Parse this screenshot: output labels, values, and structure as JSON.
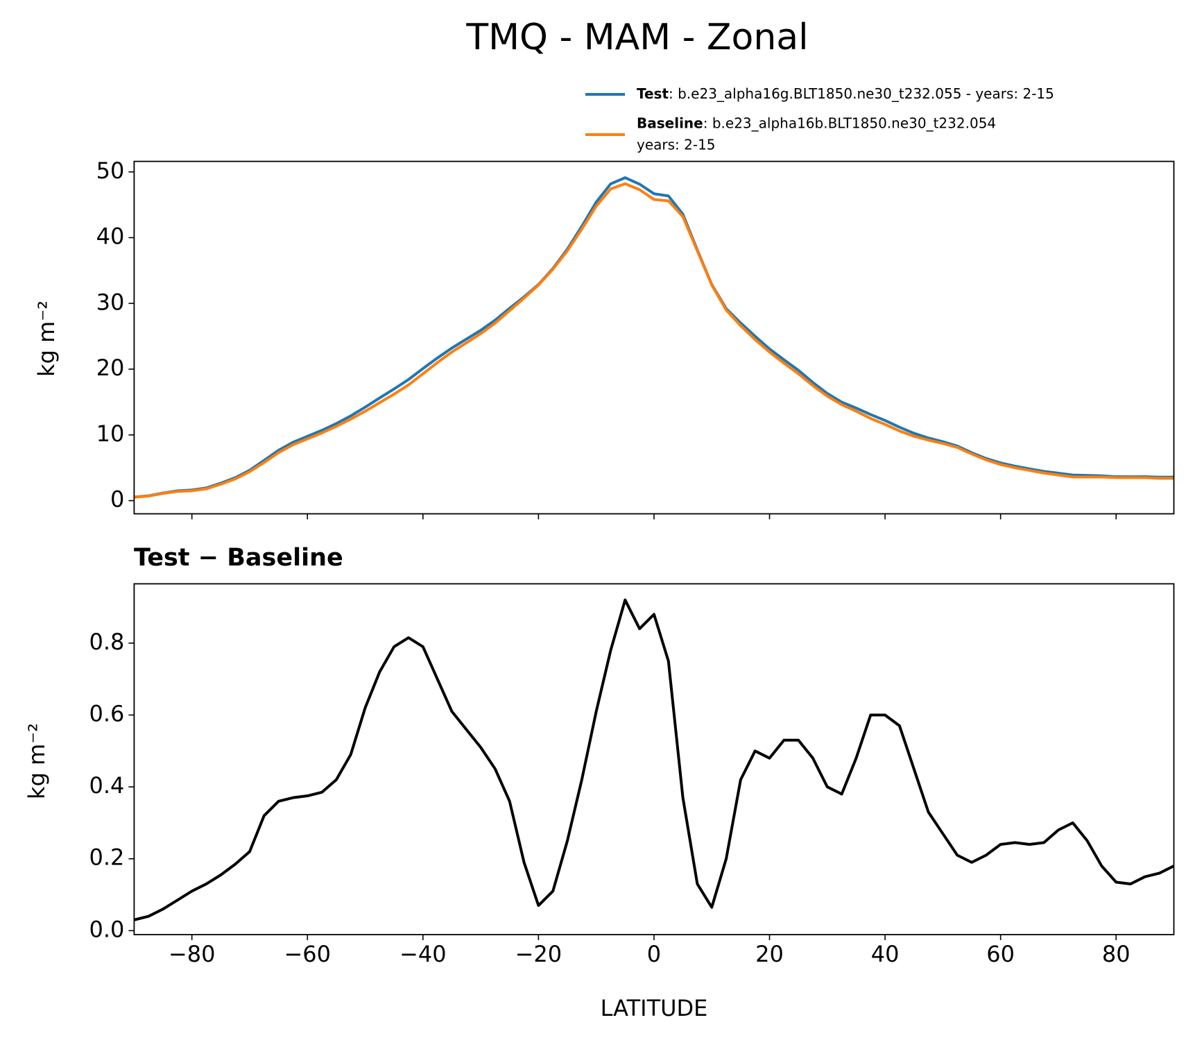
{
  "chart_data": [
    {
      "type": "line",
      "title": "TMQ - MAM - Zonal",
      "ylabel": "kg m⁻²",
      "x": [
        -90,
        -87.5,
        -85,
        -82.5,
        -80,
        -77.5,
        -75,
        -72.5,
        -70,
        -67.5,
        -65,
        -62.5,
        -60,
        -57.5,
        -55,
        -52.5,
        -50,
        -47.5,
        -45,
        -42.5,
        -40,
        -37.5,
        -35,
        -32.5,
        -30,
        -27.5,
        -25,
        -22.5,
        -20,
        -17.5,
        -15,
        -12.5,
        -10,
        -7.5,
        -5,
        -2.5,
        0,
        2.5,
        5,
        7.5,
        10,
        12.5,
        15,
        17.5,
        20,
        22.5,
        25,
        27.5,
        30,
        32.5,
        35,
        37.5,
        40,
        42.5,
        45,
        47.5,
        50,
        52.5,
        55,
        57.5,
        60,
        62.5,
        65,
        67.5,
        70,
        72.5,
        75,
        77.5,
        80,
        82.5,
        85,
        87.5,
        90
      ],
      "series": [
        {
          "name": "Test",
          "description_lines": [
            ": b.e23_alpha16g.BLT1850.ne30_t232.055 - years: 2-15"
          ],
          "color": "#1f77b4",
          "values": [
            0.53,
            0.74,
            1.16,
            1.49,
            1.61,
            1.93,
            2.66,
            3.49,
            4.62,
            6.12,
            7.66,
            8.87,
            9.78,
            10.69,
            11.72,
            12.89,
            14.22,
            15.62,
            16.99,
            18.42,
            20.09,
            21.7,
            23.21,
            24.56,
            25.91,
            27.45,
            29.26,
            30.99,
            32.87,
            35.31,
            38.25,
            41.72,
            45.41,
            48.18,
            49.12,
            48.14,
            46.68,
            46.35,
            43.57,
            38.13,
            32.87,
            29.2,
            27.02,
            25.0,
            23.08,
            21.43,
            19.83,
            17.98,
            16.3,
            14.98,
            14.08,
            13.1,
            12.2,
            11.17,
            10.25,
            9.53,
            8.97,
            8.31,
            7.29,
            6.41,
            5.74,
            5.25,
            4.84,
            4.45,
            4.18,
            3.9,
            3.85,
            3.78,
            3.64,
            3.63,
            3.65,
            3.56,
            3.58
          ]
        },
        {
          "name": "Baseline",
          "description_lines": [
            ": b.e23_alpha16b.BLT1850.ne30_t232.054",
            "years: 2-15"
          ],
          "color": "#ff7f0e",
          "values": [
            0.5,
            0.7,
            1.1,
            1.4,
            1.5,
            1.8,
            2.5,
            3.3,
            4.4,
            5.8,
            7.3,
            8.5,
            9.4,
            10.3,
            11.3,
            12.4,
            13.6,
            14.9,
            16.2,
            17.6,
            19.3,
            21.0,
            22.6,
            24.0,
            25.4,
            27.0,
            28.9,
            30.8,
            32.8,
            35.2,
            38.0,
            41.3,
            44.8,
            47.4,
            48.2,
            47.3,
            45.8,
            45.6,
            43.2,
            38.0,
            32.8,
            29.0,
            26.6,
            24.5,
            22.6,
            20.9,
            19.3,
            17.5,
            15.9,
            14.6,
            13.6,
            12.5,
            11.6,
            10.6,
            9.8,
            9.2,
            8.7,
            8.1,
            7.1,
            6.2,
            5.5,
            5.0,
            4.6,
            4.2,
            3.9,
            3.6,
            3.6,
            3.6,
            3.5,
            3.5,
            3.5,
            3.4,
            3.4
          ]
        }
      ],
      "xlim": [
        -90,
        90
      ],
      "xticks": [
        -80,
        -60,
        -40,
        -20,
        0,
        20,
        40,
        60,
        80
      ],
      "ylim": [
        -2.0,
        51.6
      ],
      "yticks": [
        0,
        10,
        20,
        30,
        40,
        50
      ]
    },
    {
      "type": "line",
      "title": "Test − Baseline",
      "ylabel": "kg m⁻²",
      "xlabel": "LATITUDE",
      "x": [
        -90,
        -87.5,
        -85,
        -82.5,
        -80,
        -77.5,
        -75,
        -72.5,
        -70,
        -67.5,
        -65,
        -62.5,
        -60,
        -57.5,
        -55,
        -52.5,
        -50,
        -47.5,
        -45,
        -42.5,
        -40,
        -37.5,
        -35,
        -32.5,
        -30,
        -27.5,
        -25,
        -22.5,
        -20,
        -17.5,
        -15,
        -12.5,
        -10,
        -7.5,
        -5,
        -2.5,
        0,
        2.5,
        5,
        7.5,
        10,
        12.5,
        15,
        17.5,
        20,
        22.5,
        25,
        27.5,
        30,
        32.5,
        35,
        37.5,
        40,
        42.5,
        45,
        47.5,
        50,
        52.5,
        55,
        57.5,
        60,
        62.5,
        65,
        67.5,
        70,
        72.5,
        75,
        77.5,
        80,
        82.5,
        85,
        87.5,
        90
      ],
      "series": [
        {
          "color": "#000000",
          "values": [
            0.03,
            0.04,
            0.06,
            0.085,
            0.11,
            0.13,
            0.155,
            0.185,
            0.22,
            0.32,
            0.36,
            0.37,
            0.375,
            0.385,
            0.42,
            0.49,
            0.62,
            0.72,
            0.79,
            0.815,
            0.79,
            0.7,
            0.61,
            0.56,
            0.51,
            0.45,
            0.36,
            0.19,
            0.07,
            0.11,
            0.25,
            0.42,
            0.61,
            0.78,
            0.92,
            0.84,
            0.88,
            0.75,
            0.37,
            0.13,
            0.065,
            0.2,
            0.42,
            0.5,
            0.48,
            0.53,
            0.53,
            0.48,
            0.4,
            0.38,
            0.48,
            0.6,
            0.6,
            0.57,
            0.45,
            0.33,
            0.27,
            0.21,
            0.19,
            0.21,
            0.24,
            0.245,
            0.24,
            0.245,
            0.28,
            0.3,
            0.25,
            0.18,
            0.135,
            0.13,
            0.15,
            0.16,
            0.18
          ]
        }
      ],
      "xlim": [
        -90,
        90
      ],
      "xticks": [
        {
          "value": -80,
          "label": "−80"
        },
        {
          "value": -60,
          "label": "−60"
        },
        {
          "value": -40,
          "label": "−40"
        },
        {
          "value": -20,
          "label": "−20"
        },
        0,
        20,
        40,
        60,
        80
      ],
      "ylim": [
        -0.011,
        0.965
      ],
      "yticks": [
        {
          "value": 0,
          "label": "0.0"
        },
        {
          "value": 0.2,
          "label": "0.2"
        },
        {
          "value": 0.4,
          "label": "0.4"
        },
        {
          "value": 0.6,
          "label": "0.6"
        },
        {
          "value": 0.8,
          "label": "0.8"
        }
      ]
    }
  ]
}
